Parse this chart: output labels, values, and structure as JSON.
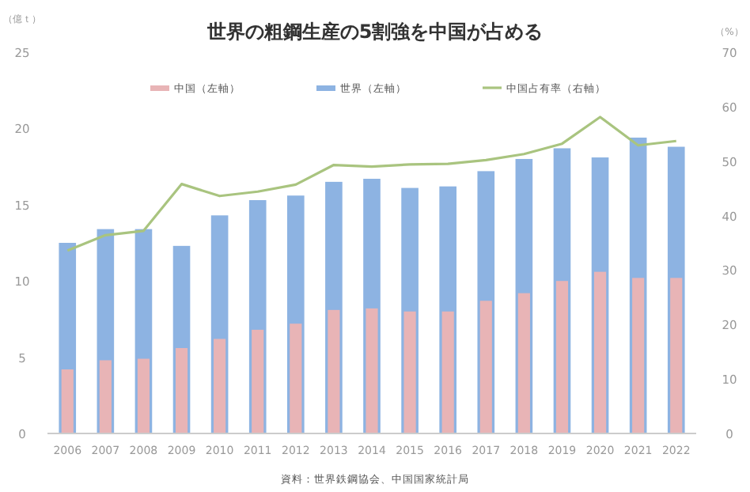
{
  "chart_data": {
    "type": "bar",
    "title": "世界の粗鋼生産の5割強を中国が占める",
    "ylabel": "（億ｔ）",
    "y2label": "（%）",
    "categories": [
      "2006",
      "2007",
      "2008",
      "2009",
      "2010",
      "2011",
      "2012",
      "2013",
      "2014",
      "2015",
      "2016",
      "2017",
      "2018",
      "2019",
      "2020",
      "2021",
      "2022"
    ],
    "series": [
      {
        "name": "中国（左軸）",
        "color": "#e8b4b6",
        "values": [
          4.2,
          4.8,
          4.9,
          5.6,
          6.2,
          6.8,
          7.2,
          8.1,
          8.2,
          8.0,
          8.0,
          8.7,
          9.2,
          10.0,
          10.6,
          10.2,
          10.2
        ]
      },
      {
        "name": "世界（左軸）",
        "color": "#8db3e2",
        "values": [
          12.5,
          13.4,
          13.4,
          12.3,
          14.3,
          15.3,
          15.6,
          16.5,
          16.7,
          16.1,
          16.2,
          17.2,
          18.0,
          18.7,
          18.1,
          19.4,
          18.8
        ]
      },
      {
        "name": "中国占有率（右軸）",
        "type": "line",
        "axis": "y2",
        "color": "#a9c47f",
        "values": [
          33.6,
          36.4,
          37.2,
          45.8,
          43.6,
          44.4,
          45.7,
          49.3,
          49.0,
          49.4,
          49.5,
          50.2,
          51.3,
          53.2,
          58.1,
          52.9,
          53.7
        ]
      }
    ],
    "ylim": [
      0,
      25
    ],
    "yticks": [
      0,
      5,
      10,
      15,
      20,
      25
    ],
    "y2lim": [
      0,
      70
    ],
    "y2ticks": [
      0,
      10,
      20,
      30,
      40,
      50,
      60,
      70
    ],
    "legend": "top",
    "grid": false,
    "marker": "none",
    "line_style": "solid",
    "annotations": [
      "資料：世界鉄鋼協会、中国国家統計局"
    ]
  }
}
